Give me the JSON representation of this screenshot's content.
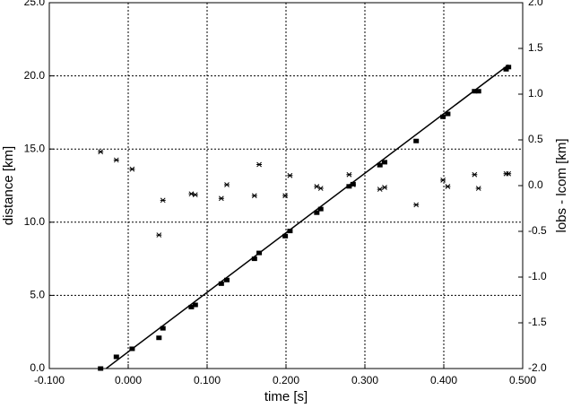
{
  "chart_data": {
    "type": "scatter",
    "xlabel": "time [s]",
    "ylabel": "distance [km]",
    "y2label": "lobs - lcom [km]",
    "xlim": [
      -0.1,
      0.5
    ],
    "xticks": [
      {
        "value": -0.1,
        "label": "-0.100"
      },
      {
        "value": 0,
        "label": "0.000"
      },
      {
        "value": 0.1,
        "label": "0.100"
      },
      {
        "value": 0.2,
        "label": "0.200"
      },
      {
        "value": 0.3,
        "label": "0.300"
      },
      {
        "value": 0.4,
        "label": "0.400"
      },
      {
        "value": 0.5,
        "label": "0.500"
      }
    ],
    "ylim": [
      0,
      25
    ],
    "yticks": [
      {
        "value": 0,
        "label": "0.0"
      },
      {
        "value": 5,
        "label": "5.0"
      },
      {
        "value": 10,
        "label": "10.0"
      },
      {
        "value": 15,
        "label": "15.0"
      },
      {
        "value": 20,
        "label": "20.0"
      },
      {
        "value": 25,
        "label": "25.0"
      }
    ],
    "y2lim": [
      -2,
      2
    ],
    "y2ticks": [
      {
        "value": -2,
        "label": "-2.0"
      },
      {
        "value": -1.5,
        "label": "-1.5"
      },
      {
        "value": -1,
        "label": "-1.0"
      },
      {
        "value": -0.5,
        "label": "-0.5"
      },
      {
        "value": 0,
        "label": "0.0"
      },
      {
        "value": 0.5,
        "label": "0.5"
      },
      {
        "value": 1,
        "label": "1.0"
      },
      {
        "value": 1.5,
        "label": "1.5"
      },
      {
        "value": 2,
        "label": "2.0"
      }
    ],
    "grid": true,
    "series": [
      {
        "marker": "square",
        "color": "#000000",
        "x": [
          -0.035,
          -0.015,
          0.005,
          0.039,
          0.044,
          0.08,
          0.085,
          0.118,
          0.125,
          0.16,
          0.166,
          0.199,
          0.205,
          0.239,
          0.244,
          0.28,
          0.285,
          0.319,
          0.325,
          0.365,
          0.399,
          0.405,
          0.439,
          0.444,
          0.479,
          0.482
        ],
        "values": [
          0.0,
          0.8,
          1.35,
          2.1,
          2.75,
          4.2,
          4.35,
          5.8,
          6.05,
          7.5,
          7.9,
          9.05,
          9.4,
          10.65,
          10.9,
          12.45,
          12.6,
          13.9,
          14.1,
          15.55,
          17.2,
          17.4,
          18.95,
          18.95,
          20.45,
          20.6
        ]
      },
      {
        "marker": "star",
        "color": "#000000",
        "axis": "y2",
        "x": [
          -0.035,
          -0.015,
          0.005,
          0.039,
          0.044,
          0.08,
          0.085,
          0.118,
          0.125,
          0.16,
          0.166,
          0.199,
          0.205,
          0.239,
          0.244,
          0.28,
          0.285,
          0.319,
          0.325,
          0.365,
          0.399,
          0.405,
          0.439,
          0.444,
          0.479,
          0.482
        ],
        "values": [
          0.37,
          0.28,
          0.18,
          -0.54,
          -0.16,
          -0.09,
          -0.1,
          -0.14,
          0.01,
          -0.11,
          0.23,
          -0.11,
          0.11,
          -0.01,
          -0.03,
          0.12,
          0.01,
          -0.04,
          -0.02,
          -0.21,
          0.06,
          -0.01,
          0.12,
          -0.03,
          0.13,
          0.13
        ]
      },
      {
        "marker": "line",
        "color": "#000000",
        "x": [
          -0.028,
          0.482
        ],
        "values": [
          0,
          20.75
        ]
      }
    ]
  }
}
